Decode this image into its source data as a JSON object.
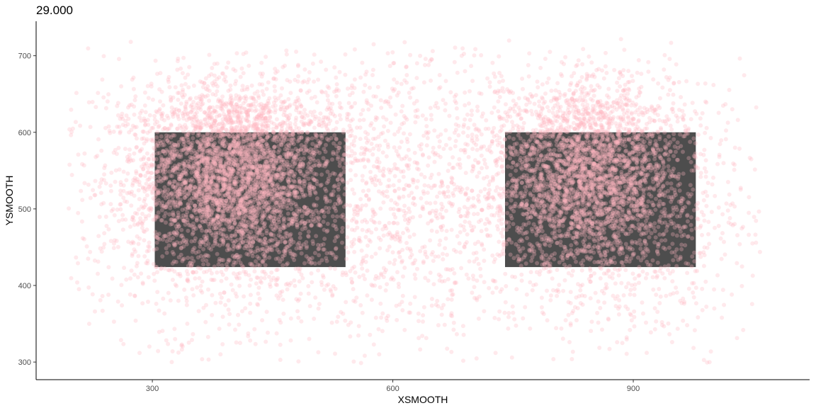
{
  "chart_data": {
    "type": "scatter",
    "title": "29.000",
    "xlabel": "XSMOOTH",
    "ylabel": "YSMOOTH",
    "xlim": [
      155,
      1120
    ],
    "ylim": [
      277,
      745
    ],
    "x_ticks": [
      300,
      600,
      900
    ],
    "y_ticks": [
      300,
      400,
      500,
      600,
      700
    ],
    "x_tick_labels": [
      "300",
      "600",
      "900"
    ],
    "y_tick_labels": [
      "300",
      "400",
      "500",
      "600",
      "700"
    ],
    "grid": false,
    "legend": "none",
    "regions": [
      {
        "x0": 303,
        "x1": 541,
        "y0": 424,
        "y1": 600
      },
      {
        "x0": 740,
        "x1": 978,
        "y0": 424,
        "y1": 600
      }
    ],
    "point_clusters": [
      {
        "cx": 400,
        "cy": 545,
        "sx": 60,
        "sy": 55,
        "n": 2600
      },
      {
        "cx": 845,
        "cy": 540,
        "sx": 55,
        "sy": 55,
        "n": 2200
      },
      {
        "cx": 420,
        "cy": 500,
        "sx": 110,
        "sy": 90,
        "n": 1400
      },
      {
        "cx": 860,
        "cy": 500,
        "sx": 110,
        "sy": 90,
        "n": 1200
      },
      {
        "cx": 630,
        "cy": 530,
        "sx": 70,
        "sy": 90,
        "n": 500
      },
      {
        "cx": 400,
        "cy": 620,
        "sx": 90,
        "sy": 35,
        "n": 350
      },
      {
        "cx": 850,
        "cy": 615,
        "sx": 80,
        "sy": 30,
        "n": 300
      },
      {
        "cx": 640,
        "cy": 500,
        "sx": 260,
        "sy": 95,
        "n": 350
      }
    ],
    "colors": {
      "point": "#ffb6c1",
      "region": "#4d4d4d",
      "axis": "#000000"
    }
  }
}
